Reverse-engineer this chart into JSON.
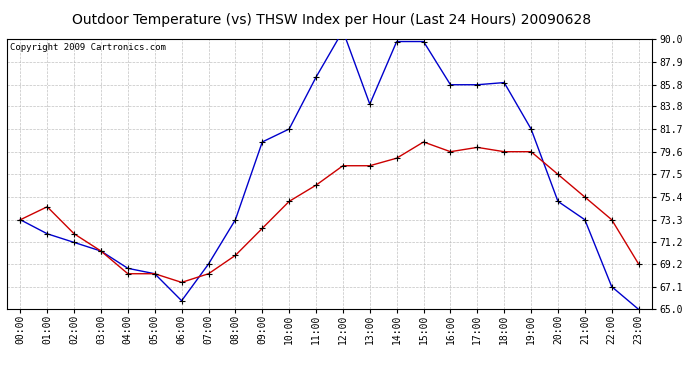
{
  "title": "Outdoor Temperature (vs) THSW Index per Hour (Last 24 Hours) 20090628",
  "copyright": "Copyright 2009 Cartronics.com",
  "hours": [
    "00:00",
    "01:00",
    "02:00",
    "03:00",
    "04:00",
    "05:00",
    "06:00",
    "07:00",
    "08:00",
    "09:00",
    "10:00",
    "11:00",
    "12:00",
    "13:00",
    "14:00",
    "15:00",
    "16:00",
    "17:00",
    "18:00",
    "19:00",
    "20:00",
    "21:00",
    "22:00",
    "23:00"
  ],
  "blue_thsw": [
    73.3,
    72.0,
    71.2,
    70.4,
    68.8,
    68.3,
    65.8,
    69.2,
    73.3,
    80.5,
    81.7,
    86.5,
    90.8,
    84.0,
    89.8,
    89.8,
    85.8,
    85.8,
    86.0,
    81.7,
    75.0,
    73.3,
    67.1,
    65.0
  ],
  "red_temp": [
    73.3,
    74.5,
    72.0,
    70.4,
    68.3,
    68.3,
    67.5,
    68.3,
    70.0,
    72.5,
    75.0,
    76.5,
    78.3,
    78.3,
    79.0,
    80.5,
    79.6,
    80.0,
    79.6,
    79.6,
    77.5,
    75.4,
    73.3,
    69.2
  ],
  "ylim": [
    65.0,
    90.0
  ],
  "yticks": [
    65.0,
    67.1,
    69.2,
    71.2,
    73.3,
    75.4,
    77.5,
    79.6,
    81.7,
    83.8,
    85.8,
    87.9,
    90.0
  ],
  "blue_color": "#0000cc",
  "red_color": "#cc0000",
  "bg_color": "#ffffff",
  "grid_color": "#bbbbbb",
  "title_fontsize": 10,
  "copyright_fontsize": 6.5,
  "tick_fontsize": 7
}
